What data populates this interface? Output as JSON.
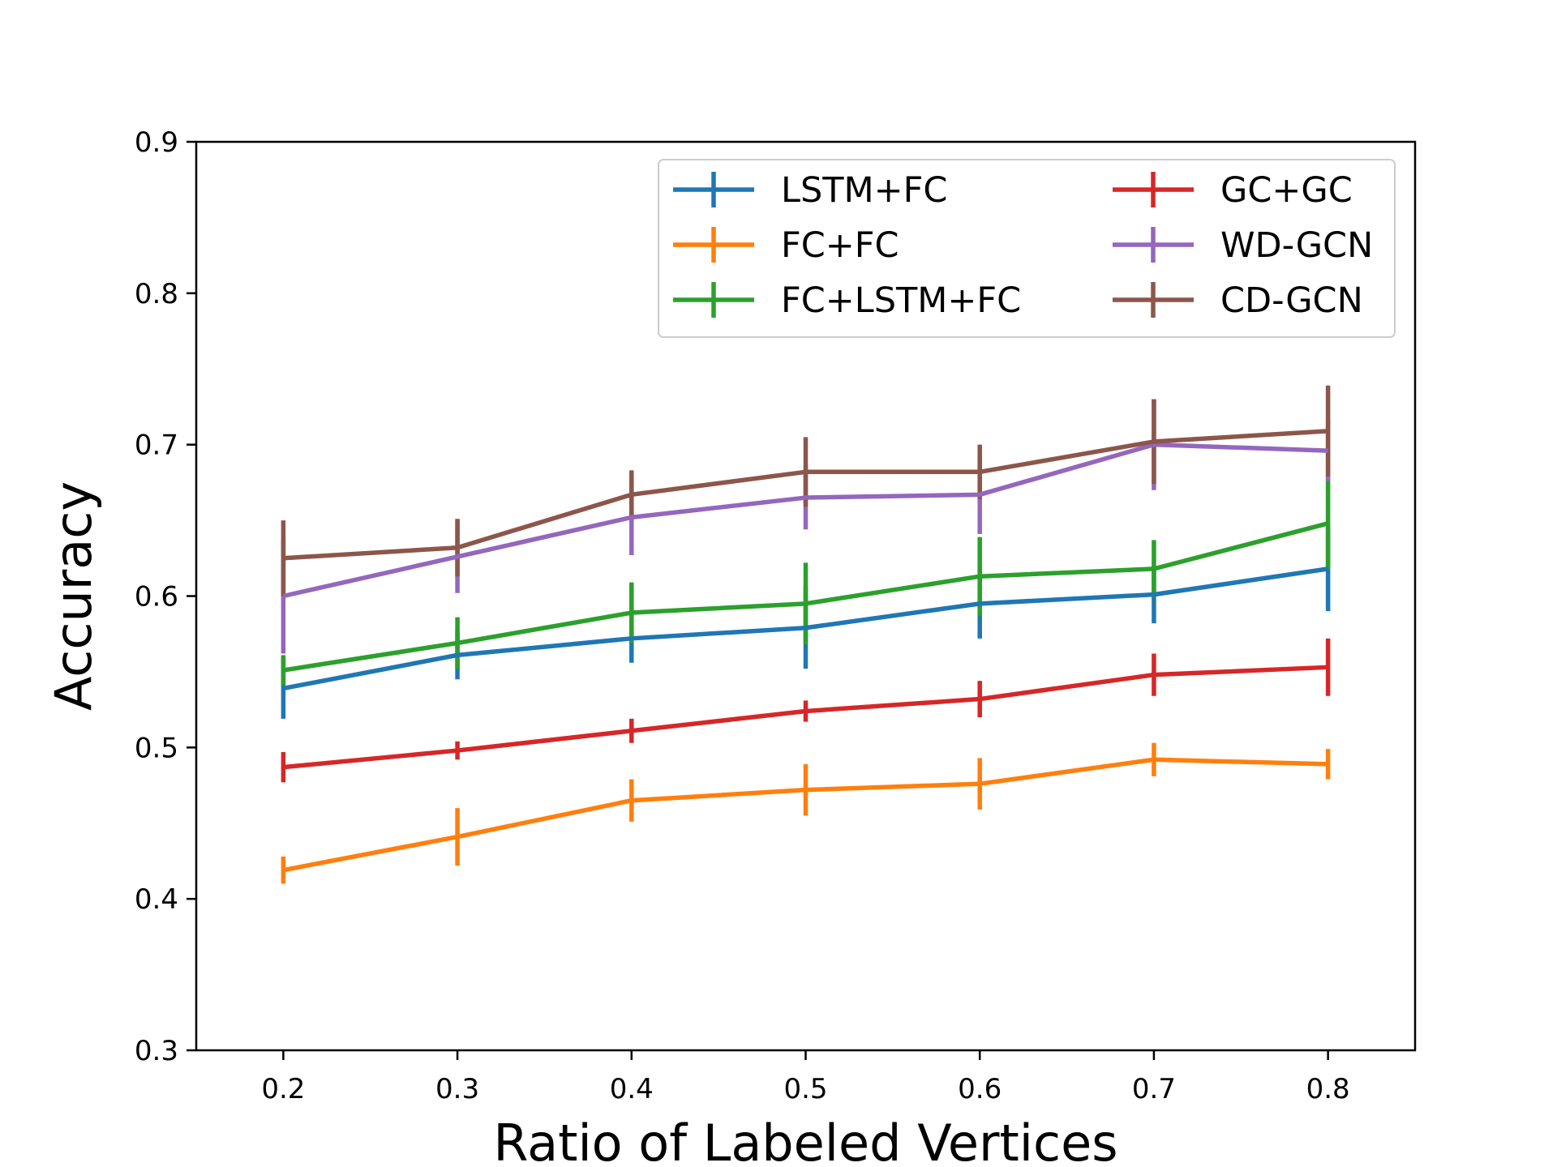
{
  "chart_data": {
    "type": "line",
    "title": "",
    "xlabel": "Ratio of Labeled Vertices",
    "ylabel": "Accuracy",
    "xlim": [
      0.15,
      0.85
    ],
    "ylim": [
      0.3,
      0.9
    ],
    "x": [
      0.2,
      0.3,
      0.4,
      0.5,
      0.6,
      0.7,
      0.8
    ],
    "xticks": [
      "0.2",
      "0.3",
      "0.4",
      "0.5",
      "0.6",
      "0.7",
      "0.8"
    ],
    "yticks": [
      "0.3",
      "0.4",
      "0.5",
      "0.6",
      "0.7",
      "0.8",
      "0.9"
    ],
    "grid": false,
    "legend_position": "top-right",
    "legend_columns": 2,
    "error_bars": true,
    "series": [
      {
        "name": "LSTM+FC",
        "color": "#1f77b4",
        "values": [
          0.539,
          0.561,
          0.572,
          0.579,
          0.595,
          0.601,
          0.618
        ],
        "errors": [
          0.02,
          0.016,
          0.016,
          0.027,
          0.023,
          0.019,
          0.028
        ]
      },
      {
        "name": "FC+FC",
        "color": "#ff7f0e",
        "values": [
          0.419,
          0.441,
          0.465,
          0.472,
          0.476,
          0.492,
          0.489
        ],
        "errors": [
          0.009,
          0.019,
          0.014,
          0.017,
          0.017,
          0.011,
          0.01
        ]
      },
      {
        "name": "FC+LSTM+FC",
        "color": "#2ca02c",
        "values": [
          0.551,
          0.569,
          0.589,
          0.595,
          0.613,
          0.618,
          0.648
        ],
        "errors": [
          0.01,
          0.017,
          0.02,
          0.027,
          0.026,
          0.019,
          0.03
        ]
      },
      {
        "name": "GC+GC",
        "color": "#d62728",
        "values": [
          0.487,
          0.498,
          0.511,
          0.524,
          0.532,
          0.548,
          0.553
        ],
        "errors": [
          0.01,
          0.006,
          0.008,
          0.007,
          0.012,
          0.014,
          0.019
        ]
      },
      {
        "name": "WD-GCN",
        "color": "#9467bd",
        "values": [
          0.6,
          0.626,
          0.652,
          0.665,
          0.667,
          0.7,
          0.696
        ],
        "errors": [
          0.038,
          0.024,
          0.025,
          0.021,
          0.026,
          0.03,
          0.02
        ]
      },
      {
        "name": "CD-GCN",
        "color": "#8c564b",
        "values": [
          0.625,
          0.632,
          0.667,
          0.682,
          0.682,
          0.702,
          0.709
        ],
        "errors": [
          0.025,
          0.019,
          0.016,
          0.023,
          0.018,
          0.028,
          0.03
        ]
      }
    ]
  }
}
